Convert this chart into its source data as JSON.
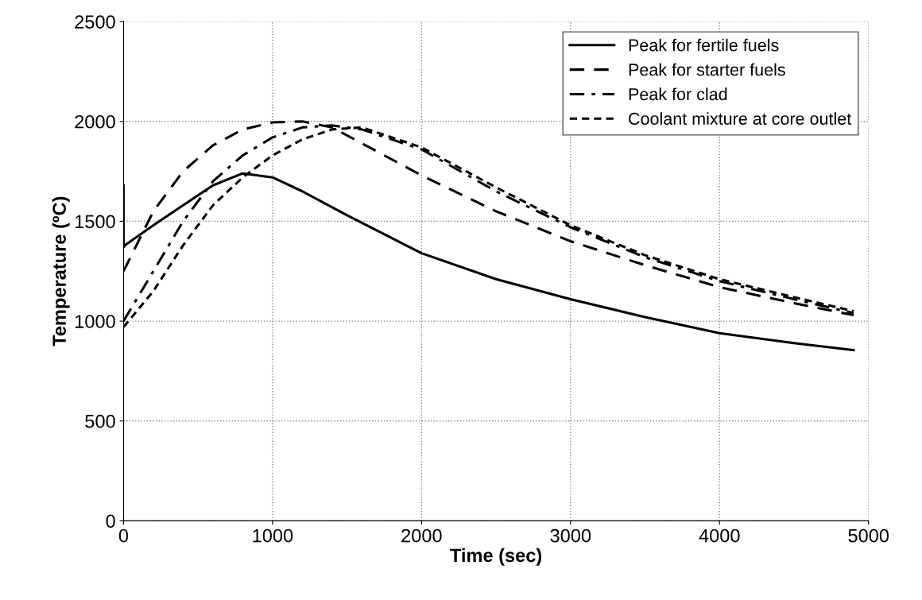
{
  "chart_data": {
    "type": "line",
    "xlabel": "Time (sec)",
    "ylabel": "Temperature (ºC)",
    "xlim": [
      0,
      5000
    ],
    "xticks": [
      0,
      1000,
      2000,
      3000,
      4000,
      5000
    ],
    "ylim": [
      0,
      2500
    ],
    "yticks": [
      0,
      500,
      1000,
      1500,
      2000,
      2500
    ],
    "grid": true,
    "legend": "top right",
    "marker": "none",
    "series": [
      {
        "name": "Peak for fertile fuels",
        "color": "#000000",
        "line_style": "solid",
        "x": [
          0,
          0,
          10,
          200,
          400,
          600,
          800,
          1000,
          1200,
          1500,
          2000,
          2500,
          3000,
          3500,
          4000,
          4500,
          4900
        ],
        "values": [
          1680,
          1370,
          1380,
          1480,
          1580,
          1680,
          1740,
          1720,
          1650,
          1530,
          1340,
          1210,
          1110,
          1020,
          940,
          890,
          855
        ]
      },
      {
        "name": "Peak for starter fuels",
        "color": "#000000",
        "line_style": "dashed",
        "x": [
          0,
          200,
          400,
          600,
          800,
          1000,
          1200,
          1400,
          1600,
          2000,
          2500,
          3000,
          3500,
          4000,
          4500,
          4900
        ],
        "values": [
          1250,
          1550,
          1750,
          1880,
          1960,
          1995,
          2000,
          1970,
          1890,
          1730,
          1550,
          1400,
          1280,
          1170,
          1090,
          1030
        ]
      },
      {
        "name": "Peak for clad",
        "color": "#000000",
        "line_style": "dashdot",
        "x": [
          0,
          200,
          400,
          600,
          800,
          1000,
          1200,
          1400,
          1600,
          2000,
          2500,
          3000,
          3500,
          4000,
          4500,
          4900
        ],
        "values": [
          1000,
          1250,
          1500,
          1700,
          1830,
          1920,
          1970,
          1980,
          1960,
          1860,
          1650,
          1470,
          1320,
          1200,
          1110,
          1040
        ]
      },
      {
        "name": "Coolant mixture at core outlet",
        "color": "#000000",
        "line_style": "dotted",
        "x": [
          0,
          200,
          400,
          600,
          800,
          1000,
          1200,
          1400,
          1600,
          2000,
          2500,
          3000,
          3500,
          4000,
          4500,
          4900
        ],
        "values": [
          970,
          1150,
          1380,
          1580,
          1720,
          1830,
          1910,
          1960,
          1970,
          1870,
          1670,
          1480,
          1330,
          1210,
          1120,
          1050
        ]
      }
    ]
  }
}
